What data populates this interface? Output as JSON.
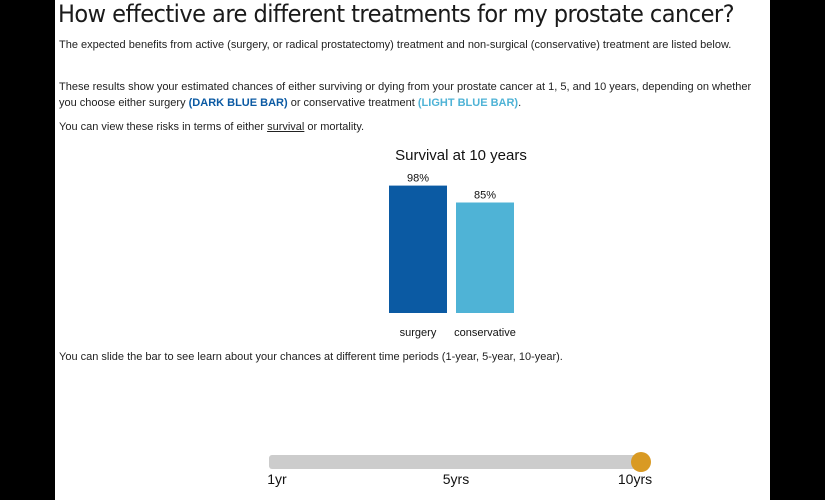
{
  "header": {
    "title": "How effective are different treatments for my prostate cancer?"
  },
  "intro": {
    "p1_a": "The expected benefits from ",
    "p1_b": "active (surgery, or radical prostatectomy) treatment and non-surgical (conservative) treatment",
    "p1_c": " are listed below.",
    "p2_a": "These results show your estimated chances of either surviving or dying from your prostate cancer at 1, 5, and 10 years, depending on whether you choose either surgery ",
    "p2_dark": "(DARK BLUE BAR)",
    "p2_b": " or conservative treatment ",
    "p2_light": "(LIGHT BLUE BAR)",
    "p2_c": ".",
    "p3_a": "You can view these risks in terms of either ",
    "p3_link": "survival",
    "p3_b": " or mortality.",
    "p4": "You can slide the bar to see learn about your chances at different time periods (1-year, 5-year, 10-year)."
  },
  "colors": {
    "surgery": "#0b5aa3",
    "conservative": "#4fb3d6",
    "slider_knob": "#d99a23",
    "slider_track": "#cccccc"
  },
  "chart_data": {
    "type": "bar",
    "title": "Survival at 10 years",
    "categories": [
      "surgery",
      "conservative"
    ],
    "values": [
      98,
      85
    ],
    "value_labels": [
      "98%",
      "85%"
    ],
    "ylim": [
      0,
      100
    ],
    "grid": false,
    "xlabel": "",
    "ylabel": ""
  },
  "slider": {
    "ticks": [
      "1yr",
      "5yrs",
      "10yrs"
    ],
    "selected": "10yrs",
    "selected_index": 2
  }
}
